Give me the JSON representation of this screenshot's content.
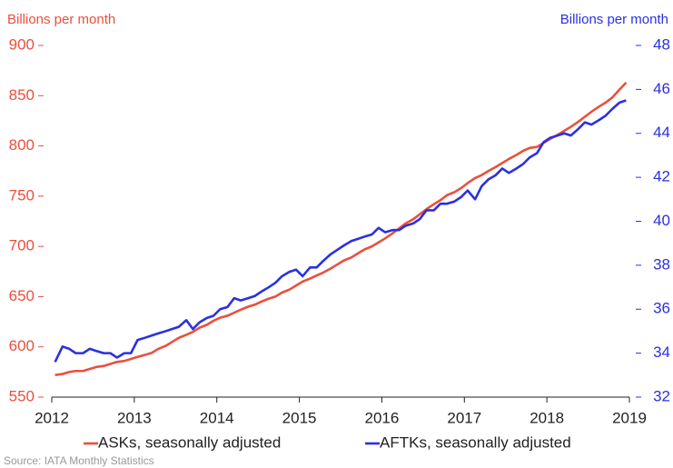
{
  "chart_data": {
    "type": "line",
    "y_label": "Billions per month",
    "y2_label": "Billions per month",
    "source": "Source: IATA Monthly Statistics",
    "x": [
      2012.04,
      2012.13,
      2012.21,
      2012.29,
      2012.38,
      2012.46,
      2012.54,
      2012.63,
      2012.71,
      2012.79,
      2012.88,
      2012.96,
      2013.04,
      2013.13,
      2013.21,
      2013.29,
      2013.38,
      2013.46,
      2013.54,
      2013.63,
      2013.71,
      2013.79,
      2013.88,
      2013.96,
      2014.04,
      2014.13,
      2014.21,
      2014.29,
      2014.38,
      2014.46,
      2014.54,
      2014.63,
      2014.71,
      2014.79,
      2014.88,
      2014.96,
      2015.04,
      2015.13,
      2015.21,
      2015.29,
      2015.38,
      2015.46,
      2015.54,
      2015.63,
      2015.71,
      2015.79,
      2015.88,
      2015.96,
      2016.04,
      2016.13,
      2016.21,
      2016.29,
      2016.38,
      2016.46,
      2016.54,
      2016.63,
      2016.71,
      2016.79,
      2016.88,
      2016.96,
      2017.04,
      2017.13,
      2017.21,
      2017.29,
      2017.38,
      2017.46,
      2017.54,
      2017.63,
      2017.71,
      2017.79,
      2017.88,
      2017.96,
      2018.04,
      2018.13,
      2018.21,
      2018.29,
      2018.38,
      2018.46,
      2018.54,
      2018.63,
      2018.71,
      2018.79,
      2018.88,
      2018.96
    ],
    "series": [
      {
        "name": "ASKs, seasonally adjusted",
        "color": "#e9503c",
        "axis": "y",
        "values": [
          572,
          573,
          575,
          576,
          576,
          578,
          580,
          581,
          583,
          585,
          586,
          588,
          590,
          592,
          594,
          598,
          601,
          605,
          609,
          612,
          615,
          619,
          622,
          626,
          629,
          631,
          634,
          637,
          640,
          642,
          645,
          648,
          650,
          654,
          657,
          661,
          665,
          668,
          671,
          674,
          678,
          682,
          686,
          689,
          693,
          697,
          700,
          704,
          708,
          713,
          718,
          723,
          727,
          732,
          737,
          742,
          746,
          751,
          754,
          758,
          763,
          768,
          771,
          775,
          779,
          783,
          787,
          791,
          795,
          798,
          799,
          803,
          807,
          811,
          815,
          819,
          824,
          829,
          834,
          839,
          843,
          848,
          856,
          863
        ]
      },
      {
        "name": "AFTKs, seasonally adjusted",
        "color": "#2b30e0",
        "axis": "y2",
        "values": [
          33.6,
          34.3,
          34.2,
          34.0,
          34.0,
          34.2,
          34.1,
          34.0,
          34.0,
          33.8,
          34.0,
          34.0,
          34.6,
          34.7,
          34.8,
          34.9,
          35.0,
          35.1,
          35.2,
          35.5,
          35.1,
          35.4,
          35.6,
          35.7,
          36.0,
          36.1,
          36.5,
          36.4,
          36.5,
          36.6,
          36.8,
          37.0,
          37.2,
          37.5,
          37.7,
          37.8,
          37.5,
          37.9,
          37.9,
          38.2,
          38.5,
          38.7,
          38.9,
          39.1,
          39.2,
          39.3,
          39.4,
          39.7,
          39.5,
          39.6,
          39.6,
          39.8,
          39.9,
          40.1,
          40.5,
          40.5,
          40.8,
          40.8,
          40.9,
          41.1,
          41.4,
          41.0,
          41.6,
          41.9,
          42.1,
          42.4,
          42.2,
          42.4,
          42.6,
          42.9,
          43.1,
          43.6,
          43.8,
          43.9,
          44.0,
          43.9,
          44.2,
          44.5,
          44.4,
          44.6,
          44.8,
          45.1,
          45.4,
          45.5
        ]
      }
    ],
    "xlim": [
      2012,
      2019
    ],
    "xticks": [
      2012,
      2013,
      2014,
      2015,
      2016,
      2017,
      2018,
      2019
    ],
    "ylim": [
      550,
      900
    ],
    "yticks": [
      550,
      600,
      650,
      700,
      750,
      800,
      850,
      900
    ],
    "y2lim": [
      32,
      48
    ],
    "y2ticks": [
      32,
      34,
      36,
      38,
      40,
      42,
      44,
      46,
      48
    ],
    "legend": "bottom"
  }
}
